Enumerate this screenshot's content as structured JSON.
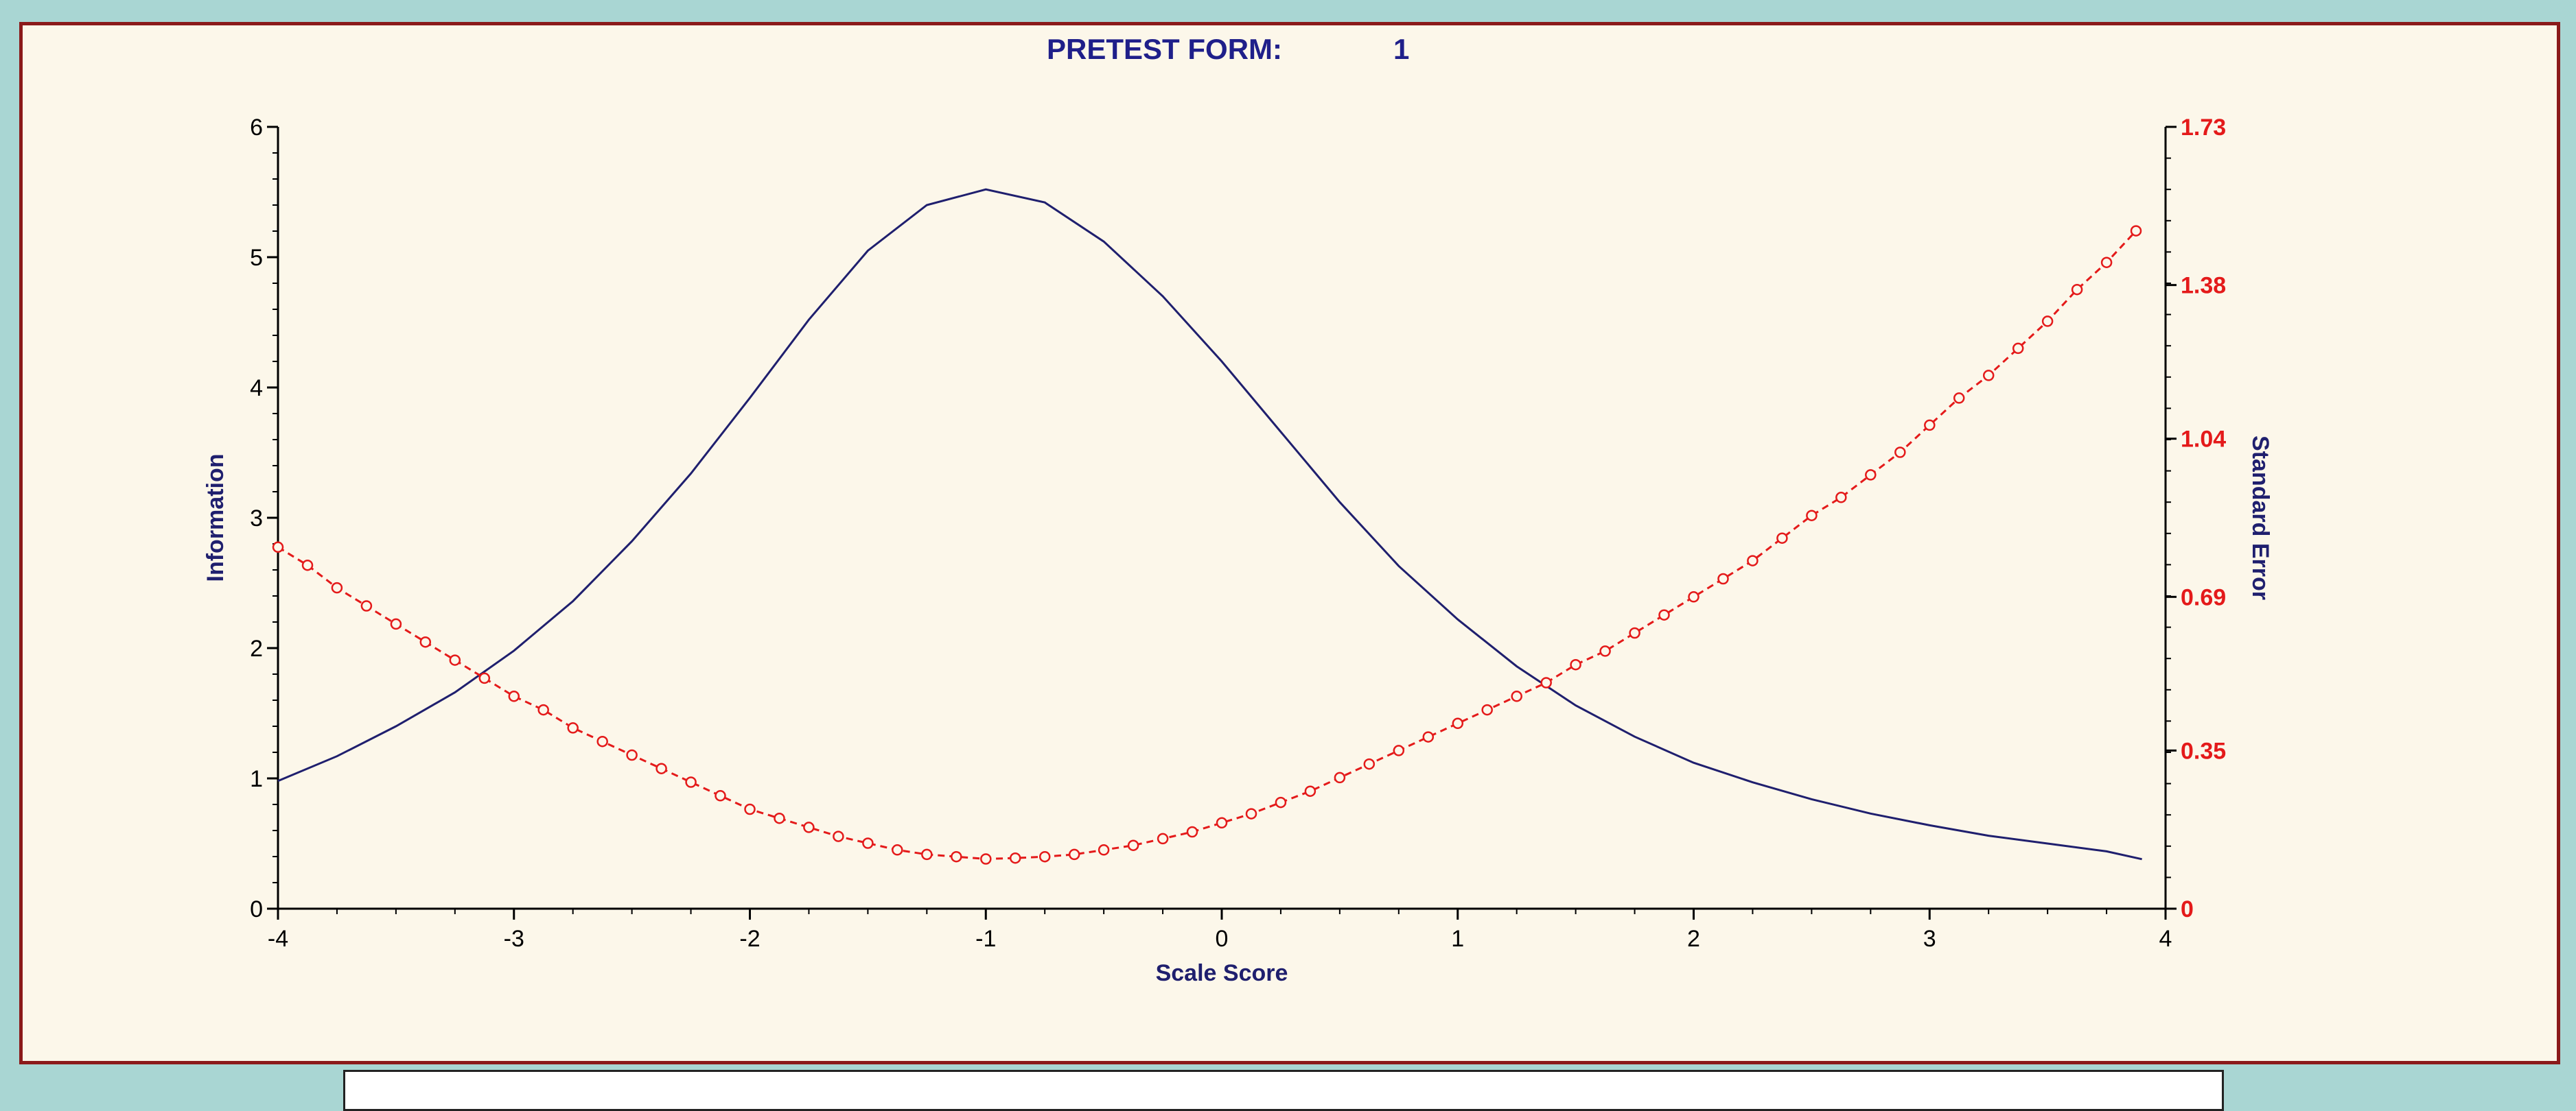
{
  "chart_data": {
    "type": "line",
    "title_label": "PRETEST  FORM:",
    "title_value": "1",
    "xlabel": "Scale Score",
    "ylabel_left": "Information",
    "ylabel_right": "Standard Error",
    "xlim": [
      -4,
      4
    ],
    "ylim_left": [
      0,
      6
    ],
    "ylim_right": [
      0,
      1.73
    ],
    "x_ticks": [
      "-4",
      "-3",
      "-2",
      "-1",
      "0",
      "1",
      "2",
      "3",
      "4"
    ],
    "x_tick_values": [
      -4,
      -3,
      -2,
      -1,
      0,
      1,
      2,
      3,
      4
    ],
    "y_left_ticks": [
      "0",
      "1",
      "2",
      "3",
      "4",
      "5",
      "6"
    ],
    "y_left_tick_values": [
      0,
      1,
      2,
      3,
      4,
      5,
      6
    ],
    "y_right_ticks": [
      "0",
      "0.35",
      "0.69",
      "1.04",
      "1.38",
      "1.73"
    ],
    "y_right_tick_values": [
      0,
      0.35,
      0.69,
      1.04,
      1.38,
      1.73
    ],
    "grid": false,
    "series": [
      {
        "name": "Information",
        "axis": "left",
        "style": "solid",
        "color": "#1f1f6e",
        "x": [
          -4.0,
          -3.75,
          -3.5,
          -3.25,
          -3.0,
          -2.75,
          -2.5,
          -2.25,
          -2.0,
          -1.75,
          -1.5,
          -1.25,
          -1.0,
          -0.75,
          -0.5,
          -0.25,
          0.0,
          0.25,
          0.5,
          0.75,
          1.0,
          1.25,
          1.5,
          1.75,
          2.0,
          2.25,
          2.5,
          2.75,
          3.0,
          3.25,
          3.5,
          3.75,
          3.9
        ],
        "y": [
          0.98,
          1.17,
          1.4,
          1.66,
          1.98,
          2.36,
          2.82,
          3.34,
          3.92,
          4.52,
          5.05,
          5.4,
          5.52,
          5.42,
          5.12,
          4.7,
          4.2,
          3.66,
          3.12,
          2.63,
          2.22,
          1.86,
          1.56,
          1.32,
          1.12,
          0.97,
          0.84,
          0.73,
          0.64,
          0.56,
          0.5,
          0.44,
          0.38
        ]
      },
      {
        "name": "Standard Error",
        "axis": "right",
        "style": "dashed",
        "marker": "circle",
        "color": "#e41a1a",
        "x": [
          -4.0,
          -3.875,
          -3.75,
          -3.625,
          -3.5,
          -3.375,
          -3.25,
          -3.125,
          -3.0,
          -2.875,
          -2.75,
          -2.625,
          -2.5,
          -2.375,
          -2.25,
          -2.125,
          -2.0,
          -1.875,
          -1.75,
          -1.625,
          -1.5,
          -1.375,
          -1.25,
          -1.125,
          -1.0,
          -0.875,
          -0.75,
          -0.625,
          -0.5,
          -0.375,
          -0.25,
          -0.125,
          0.0,
          0.125,
          0.25,
          0.375,
          0.5,
          0.625,
          0.75,
          0.875,
          1.0,
          1.125,
          1.25,
          1.375,
          1.5,
          1.625,
          1.75,
          1.875,
          2.0,
          2.125,
          2.25,
          2.375,
          2.5,
          2.625,
          2.75,
          2.875,
          3.0,
          3.125,
          3.25,
          3.375,
          3.5,
          3.625,
          3.75,
          3.875
        ],
        "y": [
          0.8,
          0.76,
          0.71,
          0.67,
          0.63,
          0.59,
          0.55,
          0.51,
          0.47,
          0.44,
          0.4,
          0.37,
          0.34,
          0.31,
          0.28,
          0.25,
          0.22,
          0.2,
          0.18,
          0.16,
          0.145,
          0.13,
          0.12,
          0.115,
          0.11,
          0.112,
          0.115,
          0.12,
          0.13,
          0.14,
          0.155,
          0.17,
          0.19,
          0.21,
          0.235,
          0.26,
          0.29,
          0.32,
          0.35,
          0.38,
          0.41,
          0.44,
          0.47,
          0.5,
          0.54,
          0.57,
          0.61,
          0.65,
          0.69,
          0.73,
          0.77,
          0.82,
          0.87,
          0.91,
          0.96,
          1.01,
          1.07,
          1.13,
          1.18,
          1.24,
          1.3,
          1.37,
          1.43,
          1.5
        ]
      }
    ]
  },
  "colors": {
    "title": "#1f1f8a",
    "left_axis": "#1f1f6e",
    "right_axis": "#e41a1a",
    "frame_border": "#8b1a1a",
    "frame_background": "#fcf7ea",
    "outer_background": "#a9d6d3"
  }
}
